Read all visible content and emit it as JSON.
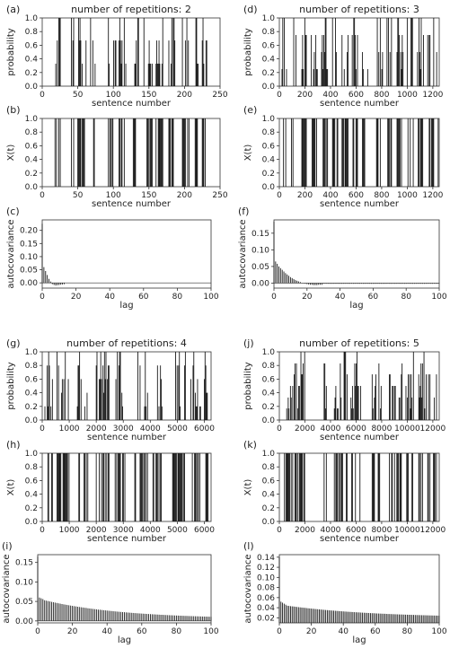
{
  "chart_data": [
    {
      "id": "a",
      "panel_label": "(a)",
      "type": "bar",
      "kind": "prob",
      "group_title": "number of repetitions: 2",
      "xlabel": "sentence number",
      "ylabel": "probability",
      "xlim": [
        0,
        250
      ],
      "ylim": [
        0,
        1.0
      ],
      "xticks": [
        "0",
        "50",
        "100",
        "150",
        "200",
        "250"
      ],
      "yticks": [
        "0.0",
        "0.2",
        "0.4",
        "0.6",
        "0.8",
        "1.0"
      ],
      "levels": [
        0.33,
        0.67,
        1.0
      ],
      "bursts": [
        [
          18,
          27
        ],
        [
          40,
          45
        ],
        [
          50,
          62
        ],
        [
          68,
          76
        ],
        [
          92,
          104
        ],
        [
          108,
          119
        ],
        [
          128,
          136
        ],
        [
          143,
          155
        ],
        [
          160,
          170
        ],
        [
          178,
          187
        ],
        [
          196,
          207
        ],
        [
          215,
          220
        ],
        [
          225,
          232
        ]
      ],
      "colors": {
        "bar": "#1a1a1a",
        "frame": "#333333"
      }
    },
    {
      "id": "b",
      "panel_label": "(b)",
      "type": "bar",
      "kind": "binary",
      "xlabel": "sentence number",
      "ylabel": "X(t)",
      "xlim": [
        0,
        250
      ],
      "ylim": [
        0,
        1.0
      ],
      "xticks": [
        "0",
        "50",
        "100",
        "150",
        "200",
        "250"
      ],
      "yticks": [
        "0.0",
        "0.2",
        "0.4",
        "0.6",
        "0.8",
        "1.0"
      ],
      "bursts": [
        [
          18,
          27
        ],
        [
          40,
          45
        ],
        [
          50,
          62
        ],
        [
          68,
          76
        ],
        [
          92,
          104
        ],
        [
          108,
          119
        ],
        [
          128,
          136
        ],
        [
          143,
          155
        ],
        [
          160,
          170
        ],
        [
          178,
          187
        ],
        [
          196,
          207
        ],
        [
          215,
          220
        ],
        [
          225,
          232
        ]
      ]
    },
    {
      "id": "c",
      "panel_label": "(c)",
      "type": "bar",
      "kind": "acf",
      "xlabel": "lag",
      "ylabel": "autocovariance",
      "xlim": [
        0,
        100
      ],
      "ylim": [
        -0.02,
        0.24
      ],
      "xticks": [
        "0",
        "20",
        "40",
        "60",
        "80",
        "100"
      ],
      "yticks": [
        "0.00",
        "0.05",
        "0.10",
        "0.15",
        "0.20"
      ],
      "acf_first": [
        0.225,
        0.06,
        0.045,
        0.03,
        0.015,
        0.005,
        -0.005,
        -0.008,
        -0.01,
        -0.009,
        -0.008,
        -0.007,
        -0.006,
        -0.005
      ],
      "acf_tail": 0.0005
    },
    {
      "id": "d",
      "panel_label": "(d)",
      "type": "bar",
      "kind": "prob",
      "group_title": "number of repetitions: 3",
      "xlabel": "sentence number",
      "ylabel": "probability",
      "xlim": [
        0,
        1250
      ],
      "ylim": [
        0,
        1.0
      ],
      "xticks": [
        "0",
        "200",
        "400",
        "600",
        "800",
        "1000",
        "1200"
      ],
      "yticks": [
        "0.0",
        "0.2",
        "0.4",
        "0.6",
        "0.8",
        "1.0"
      ],
      "levels": [
        0.25,
        0.5,
        0.75,
        1.0
      ],
      "bursts": [
        [
          15,
          60
        ],
        [
          95,
          140
        ],
        [
          170,
          215
        ],
        [
          250,
          300
        ],
        [
          330,
          380
        ],
        [
          410,
          460
        ],
        [
          490,
          540
        ],
        [
          570,
          620
        ],
        [
          650,
          700
        ],
        [
          760,
          810
        ],
        [
          830,
          880
        ],
        [
          920,
          970
        ],
        [
          1000,
          1050
        ],
        [
          1080,
          1130
        ],
        [
          1160,
          1210
        ],
        [
          1230,
          1245
        ]
      ]
    },
    {
      "id": "e",
      "panel_label": "(e)",
      "type": "bar",
      "kind": "binary",
      "xlabel": "sentence number",
      "ylabel": "X(t)",
      "xlim": [
        0,
        1250
      ],
      "ylim": [
        0,
        1.0
      ],
      "xticks": [
        "0",
        "200",
        "400",
        "600",
        "800",
        "1000",
        "1200"
      ],
      "yticks": [
        "0.0",
        "0.2",
        "0.4",
        "0.6",
        "0.8",
        "1.0"
      ],
      "bursts": [
        [
          15,
          60
        ],
        [
          95,
          140
        ],
        [
          170,
          215
        ],
        [
          250,
          300
        ],
        [
          330,
          380
        ],
        [
          410,
          460
        ],
        [
          490,
          540
        ],
        [
          570,
          620
        ],
        [
          650,
          700
        ],
        [
          760,
          810
        ],
        [
          830,
          880
        ],
        [
          920,
          970
        ],
        [
          1000,
          1050
        ],
        [
          1080,
          1130
        ],
        [
          1160,
          1210
        ],
        [
          1230,
          1245
        ]
      ]
    },
    {
      "id": "f",
      "panel_label": "(f)",
      "type": "bar",
      "kind": "acf",
      "xlabel": "lag",
      "ylabel": "autocovariance",
      "xlim": [
        0,
        100
      ],
      "ylim": [
        -0.015,
        0.19
      ],
      "xticks": [
        "0",
        "20",
        "40",
        "60",
        "80",
        "100"
      ],
      "yticks": [
        "0.00",
        "0.05",
        "0.10",
        "0.15"
      ],
      "acf_first": [
        0.185,
        0.065,
        0.058,
        0.05,
        0.045,
        0.04,
        0.035,
        0.03,
        0.026,
        0.022,
        0.018,
        0.015,
        0.012,
        0.009,
        0.007,
        0.005,
        0.003,
        0.001,
        -0.001,
        -0.002,
        -0.003,
        -0.004,
        -0.005,
        -0.005,
        -0.006,
        -0.006,
        -0.006,
        -0.005,
        -0.005,
        -0.005
      ],
      "acf_tail": -0.002
    },
    {
      "id": "g",
      "panel_label": "(g)",
      "type": "bar",
      "kind": "prob",
      "group_title": "number of repetitions: 4",
      "xlabel": "sentence number",
      "ylabel": "probability",
      "xlim": [
        0,
        6250
      ],
      "ylim": [
        0,
        1.0
      ],
      "xticks": [
        "0",
        "1000",
        "2000",
        "3000",
        "4000",
        "5000",
        "6000"
      ],
      "yticks": [
        "0.0",
        "0.2",
        "0.4",
        "0.6",
        "0.8",
        "1.0"
      ],
      "levels": [
        0.2,
        0.4,
        0.6,
        0.8,
        1.0
      ],
      "bursts": [
        [
          100,
          400
        ],
        [
          550,
          1000
        ],
        [
          1300,
          1700
        ],
        [
          2000,
          2500
        ],
        [
          2700,
          3100
        ],
        [
          3400,
          3900
        ],
        [
          4100,
          4500
        ],
        [
          4800,
          5300
        ],
        [
          5500,
          5900
        ],
        [
          6000,
          6150
        ]
      ]
    },
    {
      "id": "h",
      "panel_label": "(h)",
      "type": "bar",
      "kind": "binary",
      "xlabel": "sentence number",
      "ylabel": "X(t)",
      "xlim": [
        0,
        6250
      ],
      "ylim": [
        0,
        1.0
      ],
      "xticks": [
        "0",
        "1000",
        "2000",
        "3000",
        "4000",
        "5000",
        "6000"
      ],
      "yticks": [
        "0.0",
        "0.2",
        "0.4",
        "0.6",
        "0.8",
        "1.0"
      ],
      "bursts": [
        [
          100,
          400
        ],
        [
          550,
          1000
        ],
        [
          1300,
          1700
        ],
        [
          2000,
          2500
        ],
        [
          2700,
          3100
        ],
        [
          3400,
          3900
        ],
        [
          4100,
          4500
        ],
        [
          4800,
          5300
        ],
        [
          5500,
          5900
        ],
        [
          6000,
          6150
        ]
      ]
    },
    {
      "id": "i",
      "panel_label": "(i)",
      "type": "bar",
      "kind": "acf",
      "xlabel": "lag",
      "ylabel": "autocovariance",
      "xlim": [
        0,
        100
      ],
      "ylim": [
        -0.005,
        0.17
      ],
      "xticks": [
        "0",
        "20",
        "40",
        "60",
        "80",
        "100"
      ],
      "yticks": [
        "0.00",
        "0.05",
        "0.10",
        "0.15"
      ],
      "acf_first": [
        0.165,
        0.06,
        0.058,
        0.056
      ],
      "acf_decay": {
        "from": 0.053,
        "to": 0.005,
        "scale": 45
      }
    },
    {
      "id": "j",
      "panel_label": "(j)",
      "type": "bar",
      "kind": "prob",
      "group_title": "number of repetitions: 5",
      "xlabel": "sentence number",
      "ylabel": "probability",
      "xlim": [
        0,
        12500
      ],
      "ylim": [
        0,
        1.0
      ],
      "xticks": [
        "0",
        "2000",
        "4000",
        "6000",
        "8000",
        "10000",
        "12000"
      ],
      "yticks": [
        "0.0",
        "0.2",
        "0.4",
        "0.6",
        "0.8",
        "1.0"
      ],
      "levels": [
        0.17,
        0.33,
        0.5,
        0.67,
        0.83,
        1.0
      ],
      "bursts": [
        [
          400,
          2000
        ],
        [
          3500,
          3700
        ],
        [
          4300,
          5300
        ],
        [
          5600,
          6400
        ],
        [
          7200,
          8000
        ],
        [
          8600,
          9600
        ],
        [
          9900,
          10500
        ],
        [
          10900,
          11800
        ],
        [
          12050,
          12300
        ]
      ]
    },
    {
      "id": "k",
      "panel_label": "(k)",
      "type": "bar",
      "kind": "binary",
      "xlabel": "sentence number",
      "ylabel": "X(t)",
      "xlim": [
        0,
        12500
      ],
      "ylim": [
        0,
        1.0
      ],
      "xticks": [
        "0",
        "2000",
        "4000",
        "6000",
        "8000",
        "10000",
        "12000"
      ],
      "yticks": [
        "0.0",
        "0.2",
        "0.4",
        "0.6",
        "0.8",
        "1.0"
      ],
      "bursts": [
        [
          400,
          2000
        ],
        [
          3500,
          3700
        ],
        [
          4300,
          5300
        ],
        [
          5600,
          6400
        ],
        [
          7200,
          8000
        ],
        [
          8600,
          9600
        ],
        [
          9900,
          10500
        ],
        [
          10900,
          11800
        ],
        [
          12050,
          12300
        ]
      ]
    },
    {
      "id": "l",
      "panel_label": "(l)",
      "type": "bar",
      "kind": "acf",
      "xlabel": "lag",
      "ylabel": "autocovariance",
      "xlim": [
        0,
        100
      ],
      "ylim": [
        0.01,
        0.145
      ],
      "xticks": [
        "0",
        "20",
        "40",
        "60",
        "80",
        "100"
      ],
      "yticks": [
        "0.02",
        "0.04",
        "0.06",
        "0.08",
        "0.10",
        "0.12",
        "0.14"
      ],
      "acf_first": [
        0.14,
        0.052,
        0.05,
        0.048,
        0.046
      ],
      "acf_decay": {
        "from": 0.044,
        "to": 0.02,
        "scale": 55
      }
    }
  ]
}
